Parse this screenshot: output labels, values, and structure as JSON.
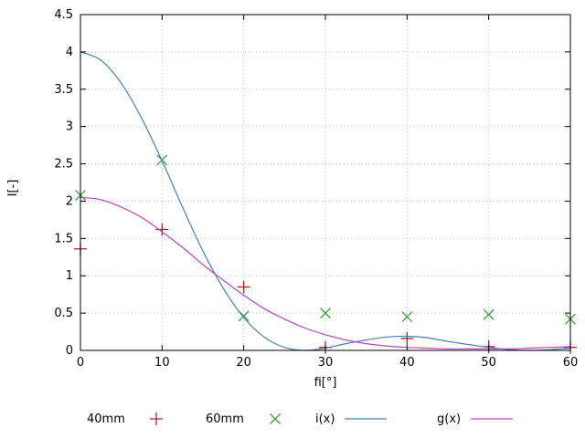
{
  "chart_data": {
    "type": "line",
    "title": "",
    "xlabel": "fi[°]",
    "ylabel": "I[-]",
    "xlim": [
      0,
      60
    ],
    "ylim": [
      0,
      4.5
    ],
    "xticks": [
      0,
      10,
      20,
      30,
      40,
      50,
      60
    ],
    "yticks": [
      0,
      0.5,
      1,
      1.5,
      2,
      2.5,
      3,
      3.5,
      4,
      4.5
    ],
    "grid": true,
    "grid_style": "dotted",
    "grid_color": "#bdbdbd",
    "axis_color": "#000000",
    "background": "#ffffff",
    "legend_position": "bottom",
    "series": [
      {
        "name": "40mm",
        "type": "scatter",
        "marker": "plus",
        "color": "#b22222",
        "x": [
          0,
          10,
          20,
          30,
          40,
          50,
          60
        ],
        "y": [
          1.36,
          1.62,
          0.85,
          0.04,
          0.16,
          0.05,
          0.04
        ]
      },
      {
        "name": "60mm",
        "type": "scatter",
        "marker": "x",
        "color": "#3fa03f",
        "x": [
          0,
          10,
          20,
          30,
          40,
          50,
          60
        ],
        "y": [
          2.08,
          2.55,
          0.46,
          0.5,
          0.45,
          0.48,
          0.42
        ]
      },
      {
        "name": "i(x)",
        "type": "line",
        "color": "#4682b4",
        "x": [
          0,
          2.5,
          5,
          7.5,
          10,
          12.5,
          15,
          17.5,
          20,
          22.5,
          25,
          27.5,
          30,
          32.5,
          35,
          37.5,
          40,
          42.5,
          45,
          47.5,
          50,
          52.5,
          55,
          57.5,
          60
        ],
        "y": [
          4.0,
          3.89,
          3.58,
          3.11,
          2.54,
          1.92,
          1.33,
          0.83,
          0.44,
          0.18,
          0.04,
          0.0,
          0.03,
          0.09,
          0.14,
          0.18,
          0.19,
          0.17,
          0.12,
          0.08,
          0.04,
          0.01,
          0.0,
          0.01,
          0.03
        ]
      },
      {
        "name": "g(x)",
        "type": "line",
        "color": "#c040c0",
        "x": [
          0,
          2.5,
          5,
          7.5,
          10,
          12.5,
          15,
          17.5,
          20,
          22.5,
          25,
          27.5,
          30,
          32.5,
          35,
          37.5,
          40,
          42.5,
          45,
          47.5,
          50,
          52.5,
          55,
          57.5,
          60
        ],
        "y": [
          2.05,
          2.02,
          1.92,
          1.78,
          1.59,
          1.38,
          1.15,
          0.94,
          0.74,
          0.56,
          0.42,
          0.3,
          0.21,
          0.14,
          0.09,
          0.06,
          0.04,
          0.03,
          0.02,
          0.02,
          0.02,
          0.02,
          0.03,
          0.04,
          0.05
        ]
      }
    ]
  }
}
